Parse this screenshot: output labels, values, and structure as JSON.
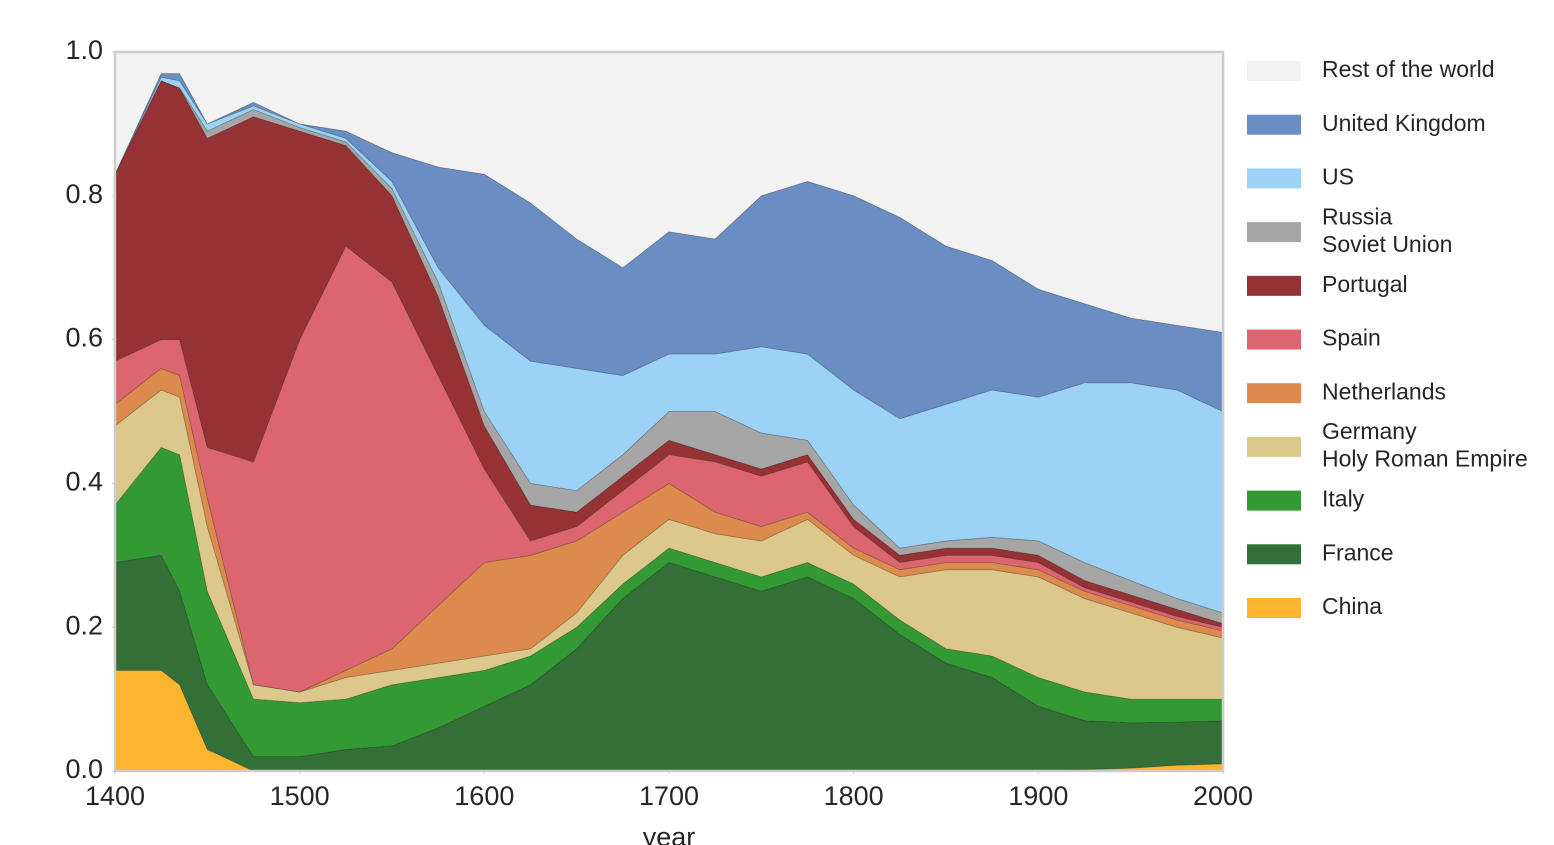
{
  "chart_data": {
    "type": "stacked-area",
    "xlabel": "year",
    "x": [
      1400,
      1425,
      1435,
      1450,
      1475,
      1500,
      1525,
      1550,
      1575,
      1600,
      1625,
      1650,
      1675,
      1700,
      1725,
      1750,
      1775,
      1800,
      1825,
      1850,
      1875,
      1900,
      1925,
      1950,
      1975,
      2000
    ],
    "series": [
      {
        "name": "China",
        "color": "#fdb42f",
        "values": [
          0.14,
          0.14,
          0.12,
          0.03,
          0,
          0,
          0,
          0,
          0,
          0,
          0,
          0,
          0,
          0,
          0,
          0,
          0,
          0,
          0,
          0,
          0,
          0,
          0.002,
          0.004,
          0.008,
          0.01
        ]
      },
      {
        "name": "France",
        "color": "#336f36",
        "values": [
          0.15,
          0.16,
          0.13,
          0.09,
          0.02,
          0.02,
          0.03,
          0.035,
          0.06,
          0.09,
          0.12,
          0.17,
          0.24,
          0.29,
          0.27,
          0.25,
          0.27,
          0.24,
          0.19,
          0.15,
          0.13,
          0.09,
          0.068,
          0.063,
          0.06,
          0.06
        ]
      },
      {
        "name": "Italy",
        "color": "#339933",
        "values": [
          0.08,
          0.15,
          0.19,
          0.13,
          0.08,
          0.075,
          0.07,
          0.085,
          0.07,
          0.05,
          0.04,
          0.03,
          0.02,
          0.02,
          0.02,
          0.02,
          0.02,
          0.02,
          0.02,
          0.02,
          0.03,
          0.04,
          0.04,
          0.033,
          0.032,
          0.03
        ]
      },
      {
        "name": "Germany\nHoly Roman Empire",
        "color": "#dbc88a",
        "values": [
          0.11,
          0.08,
          0.08,
          0.09,
          0.02,
          0.015,
          0.03,
          0.02,
          0.02,
          0.02,
          0.01,
          0.02,
          0.04,
          0.04,
          0.04,
          0.05,
          0.06,
          0.04,
          0.06,
          0.11,
          0.12,
          0.14,
          0.13,
          0.12,
          0.1,
          0.085
        ]
      },
      {
        "name": "Netherlands",
        "color": "#dc8a4e",
        "values": [
          0.03,
          0.03,
          0.03,
          0.04,
          0,
          0,
          0.01,
          0.03,
          0.08,
          0.13,
          0.13,
          0.1,
          0.06,
          0.05,
          0.03,
          0.02,
          0.01,
          0.01,
          0.01,
          0.01,
          0.01,
          0.01,
          0.01,
          0.01,
          0.01,
          0.01
        ]
      },
      {
        "name": "Spain",
        "color": "#dc6670",
        "values": [
          0.06,
          0.04,
          0.05,
          0.07,
          0.31,
          0.49,
          0.59,
          0.51,
          0.32,
          0.13,
          0.02,
          0.02,
          0.03,
          0.04,
          0.07,
          0.07,
          0.07,
          0.03,
          0.01,
          0.01,
          0.01,
          0.01,
          0.005,
          0.005,
          0.005,
          0.005
        ]
      },
      {
        "name": "Portugal",
        "color": "#963234",
        "values": [
          0.26,
          0.36,
          0.35,
          0.43,
          0.48,
          0.29,
          0.14,
          0.12,
          0.11,
          0.06,
          0.05,
          0.02,
          0.02,
          0.02,
          0.01,
          0.01,
          0.01,
          0.01,
          0.01,
          0.01,
          0.01,
          0.01,
          0.01,
          0.01,
          0.01,
          0.005
        ]
      },
      {
        "name": "Russia\nSoviet Union",
        "color": "#a6a6a6",
        "values": [
          0,
          0,
          0,
          0.01,
          0.01,
          0.005,
          0.005,
          0.01,
          0.02,
          0.02,
          0.03,
          0.03,
          0.03,
          0.04,
          0.06,
          0.05,
          0.02,
          0.02,
          0.01,
          0.01,
          0.015,
          0.02,
          0.025,
          0.02,
          0.015,
          0.015
        ]
      },
      {
        "name": "US",
        "color": "#9bd2f5",
        "values": [
          0,
          0.005,
          0.01,
          0.01,
          0.005,
          0.005,
          0.005,
          0.01,
          0.02,
          0.12,
          0.17,
          0.17,
          0.11,
          0.08,
          0.08,
          0.12,
          0.12,
          0.16,
          0.18,
          0.19,
          0.205,
          0.2,
          0.25,
          0.275,
          0.29,
          0.28
        ]
      },
      {
        "name": "United Kingdom",
        "color": "#6a8ec4",
        "values": [
          0,
          0.005,
          0.01,
          0,
          0.005,
          0,
          0.01,
          0.04,
          0.14,
          0.21,
          0.22,
          0.18,
          0.15,
          0.17,
          0.16,
          0.21,
          0.24,
          0.27,
          0.28,
          0.22,
          0.18,
          0.15,
          0.11,
          0.09,
          0.09,
          0.11
        ]
      },
      {
        "name": "Rest of the world",
        "color": "#f2f2f2",
        "values": [
          0.17,
          0.03,
          0.03,
          0.1,
          0.07,
          0.1,
          0.11,
          0.14,
          0.16,
          0.17,
          0.21,
          0.26,
          0.3,
          0.25,
          0.26,
          0.2,
          0.18,
          0.2,
          0.23,
          0.27,
          0.29,
          0.33,
          0.35,
          0.37,
          0.38,
          0.39
        ]
      }
    ],
    "xlim": [
      1400,
      2000
    ],
    "xticks": [
      1400,
      1500,
      1600,
      1700,
      1800,
      1900,
      2000
    ],
    "ylim": [
      0,
      1
    ],
    "yticks": [
      {
        "value": 0,
        "label": "0.0"
      },
      0.2,
      0.4,
      0.6,
      0.8,
      {
        "value": 1,
        "label": "1.0"
      }
    ],
    "legend": "right"
  }
}
